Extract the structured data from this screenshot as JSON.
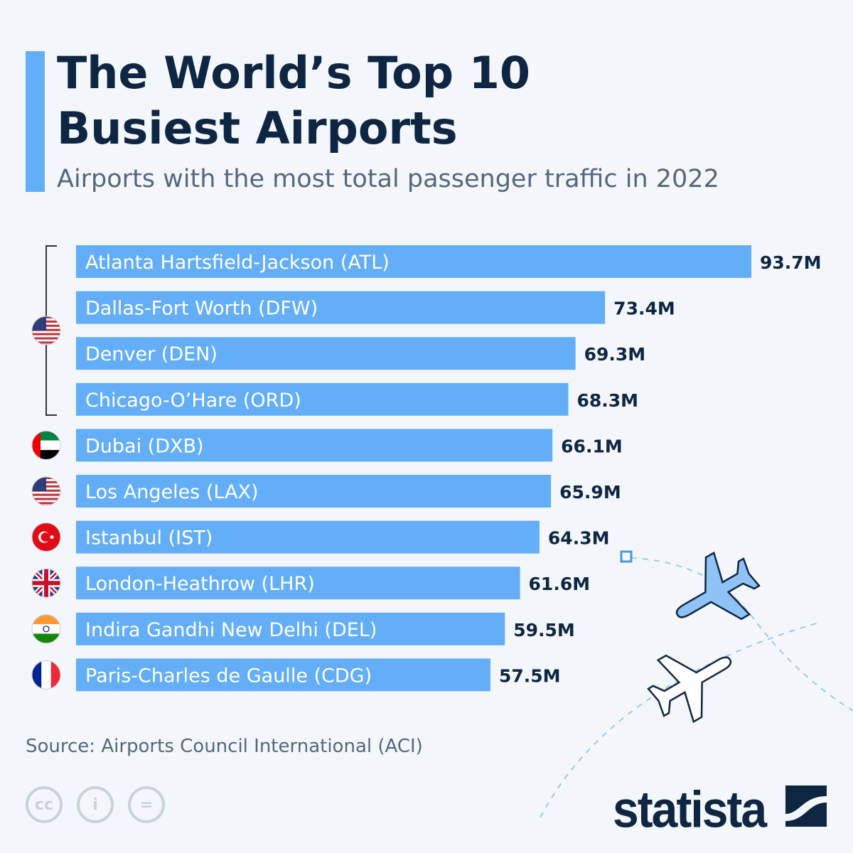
{
  "title_line1": "The World’s Top 10",
  "title_line2": "Busiest Airports",
  "subtitle": "Airports with the most total passenger traffic in 2022",
  "source": "Source: Airports Council International (ACI)",
  "brand": "statista",
  "colors": {
    "bar": "#64aef7",
    "title": "#0f2642",
    "accent": "#64aef7"
  },
  "license_icons": [
    "cc-icon",
    "attribution-icon",
    "no-derivatives-icon"
  ],
  "chart_data": {
    "type": "bar",
    "orientation": "horizontal",
    "unit": "M",
    "title": "The World’s Top 10 Busiest Airports",
    "subtitle": "Airports with the most total passenger traffic in 2022",
    "categories": [
      "Atlanta Hartsfield-Jackson (ATL)",
      "Dallas-Fort Worth (DFW)",
      "Denver (DEN)",
      "Chicago-O’Hare (ORD)",
      "Dubai (DXB)",
      "Los Angeles (LAX)",
      "Istanbul (IST)",
      "London-Heathrow (LHR)",
      "Indira Gandhi New Delhi (DEL)",
      "Paris-Charles de Gaulle (CDG)"
    ],
    "values": [
      93.7,
      73.4,
      69.3,
      68.3,
      66.1,
      65.9,
      64.3,
      61.6,
      59.5,
      57.5
    ],
    "value_labels": [
      "93.7M",
      "73.4M",
      "69.3M",
      "68.3M",
      "66.1M",
      "65.9M",
      "64.3M",
      "61.6M",
      "59.5M",
      "57.5M"
    ],
    "countries": [
      "us",
      "us",
      "us",
      "us",
      "uae",
      "us",
      "turkey",
      "uk",
      "india",
      "france"
    ],
    "grid": false,
    "legend": "none"
  }
}
